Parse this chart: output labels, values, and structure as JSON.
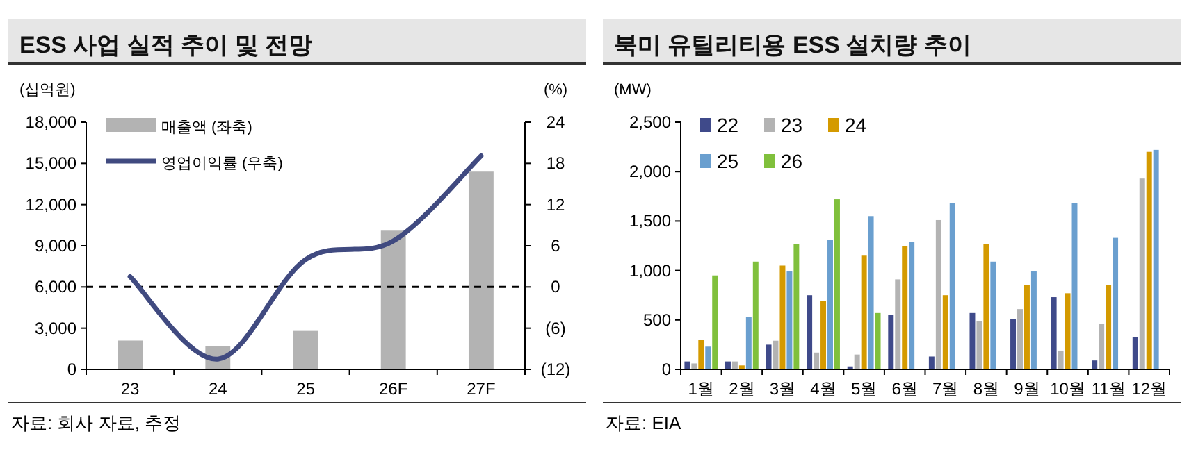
{
  "chart_data": [
    {
      "type": "bar",
      "title": "ESS 사업 실적 추이 및 전망",
      "ylabel": "(십억원)",
      "y2label": "(%)",
      "categories": [
        "23",
        "24",
        "25",
        "26F",
        "27F"
      ],
      "series": [
        {
          "name": "매출액 (좌축)",
          "type": "bar",
          "color": "#b3b3b3",
          "values": [
            2100,
            1700,
            2800,
            10100,
            14400
          ]
        },
        {
          "name": "영업이익률 (우축)",
          "type": "line",
          "axis": "y2",
          "color": "#404a80",
          "values": [
            1.5,
            -10.5,
            4,
            6.7,
            19.1
          ]
        }
      ],
      "ylim": [
        0,
        18000
      ],
      "yticks": [
        {
          "value": 0,
          "label": "0"
        },
        {
          "value": 3000,
          "label": "3,000"
        },
        {
          "value": 6000,
          "label": "6,000"
        },
        {
          "value": 9000,
          "label": "9,000"
        },
        {
          "value": 12000,
          "label": "12,000"
        },
        {
          "value": 15000,
          "label": "15,000"
        },
        {
          "value": 18000,
          "label": "18,000"
        }
      ],
      "y2lim": [
        -12,
        24
      ],
      "y2ticks": [
        {
          "value": -12,
          "label": "(12)"
        },
        {
          "value": -6,
          "label": "(6)"
        },
        {
          "value": 0,
          "label": "0"
        },
        6,
        12,
        18,
        24
      ],
      "ref_lines": [
        {
          "axis": "y2",
          "value": 0,
          "color": "#000000",
          "line_style": "dashed"
        }
      ],
      "legend": "top left",
      "annotations": [
        "자료: 회사 자료, 추정"
      ]
    },
    {
      "type": "bar",
      "title": "북미 유틸리티용 ESS 설치량 추이",
      "ylabel": "(MW)",
      "categories": [
        "1월",
        "2월",
        "3월",
        "4월",
        "5월",
        "6월",
        "7월",
        "8월",
        "9월",
        "10월",
        "11월",
        "12월"
      ],
      "series": [
        {
          "name": "22",
          "color": "#3f4a8a",
          "values": [
            80,
            80,
            250,
            750,
            30,
            550,
            130,
            570,
            510,
            730,
            90,
            330
          ]
        },
        {
          "name": "23",
          "color": "#b3b3b3",
          "values": [
            60,
            80,
            290,
            170,
            150,
            910,
            1510,
            490,
            610,
            190,
            460,
            1930
          ]
        },
        {
          "name": "24",
          "color": "#d49a00",
          "values": [
            300,
            40,
            1050,
            690,
            1150,
            1250,
            750,
            1270,
            850,
            770,
            850,
            2200
          ]
        },
        {
          "name": "25",
          "color": "#6a9fcf",
          "values": [
            230,
            530,
            990,
            1310,
            1550,
            1290,
            1680,
            1090,
            990,
            1680,
            1330,
            2220
          ]
        },
        {
          "name": "26",
          "color": "#80c03c",
          "values": [
            950,
            1090,
            1270,
            1720,
            570,
            null,
            null,
            null,
            null,
            null,
            null,
            null
          ]
        }
      ],
      "ylim": [
        0,
        2500
      ],
      "yticks": [
        {
          "value": 0,
          "label": "0"
        },
        500,
        {
          "value": 1000,
          "label": "1,000"
        },
        {
          "value": 1500,
          "label": "1,500"
        },
        {
          "value": 2000,
          "label": "2,000"
        },
        {
          "value": 2500,
          "label": "2,500"
        }
      ],
      "legend": "top left",
      "annotations": [
        "자료: EIA"
      ]
    }
  ]
}
